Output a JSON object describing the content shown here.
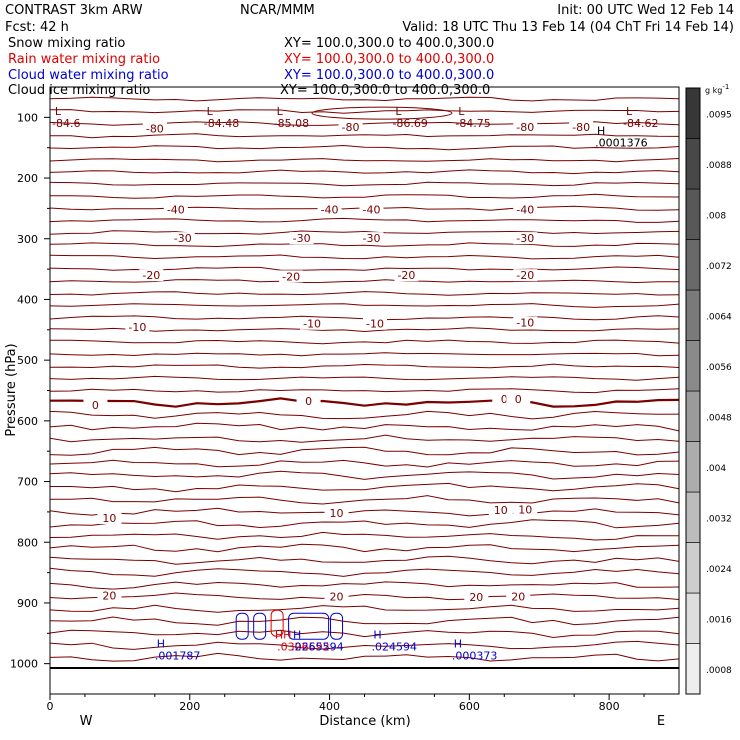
{
  "header": {
    "model": "CONTRAST  3km ARW",
    "org": "NCAR/MMM",
    "init": "Init: 00 UTC Wed 12 Feb 14",
    "fcst": "Fcst:    42 h",
    "valid": "Valid: 18 UTC Thu 13 Feb 14 (04 ChT Fri 14 Feb 14)"
  },
  "fields": [
    {
      "name": "Snow mixing ratio",
      "xy": "XY= 100.0,300.0 to 400.0,300.0",
      "color": "#000000"
    },
    {
      "name": "Rain water mixing ratio",
      "xy": "XY= 100.0,300.0 to 400.0,300.0",
      "color": "#e00000"
    },
    {
      "name": "Cloud water mixing ratio",
      "xy": "XY= 100.0,300.0 to 400.0,300.0",
      "color": "#0000d0"
    },
    {
      "name": "Cloud ice mixing ratio",
      "xy": "XY= 100.0,300.0 to 400.0,300.0",
      "color": "#000000"
    }
  ],
  "chart_data": {
    "type": "cross-section contour",
    "xlabel": "Distance (km)",
    "ylabel": "Pressure (hPa)",
    "xlim": [
      0,
      900
    ],
    "ylim": [
      1050,
      50
    ],
    "xticks": [
      "0",
      "200",
      "400",
      "600",
      "800"
    ],
    "yticks": [
      "100",
      "200",
      "300",
      "400",
      "500",
      "600",
      "700",
      "800",
      "900",
      "1000"
    ],
    "left_label": "W",
    "right_label": "E",
    "colorbar": {
      "unit": "g kg",
      "unit_exp": "-1",
      "levels": [
        ".0008",
        ".0016",
        ".0024",
        ".0032",
        ".004",
        ".0048",
        ".0056",
        ".0064",
        ".0072",
        ".008",
        ".0088",
        ".0095"
      ]
    },
    "temperature_contour_color": "#7a0000",
    "temperature_labels": [
      {
        "text": "-80",
        "x": 150,
        "p": 118
      },
      {
        "text": "-80",
        "x": 430,
        "p": 116
      },
      {
        "text": "-80",
        "x": 680,
        "p": 116
      },
      {
        "text": "-80",
        "x": 760,
        "p": 116
      },
      {
        "text": "-40",
        "x": 180,
        "p": 252
      },
      {
        "text": "-40",
        "x": 400,
        "p": 252
      },
      {
        "text": "-40",
        "x": 460,
        "p": 252
      },
      {
        "text": "-40",
        "x": 680,
        "p": 252
      },
      {
        "text": "-30",
        "x": 190,
        "p": 299
      },
      {
        "text": "-30",
        "x": 360,
        "p": 299
      },
      {
        "text": "-30",
        "x": 460,
        "p": 299
      },
      {
        "text": "-30",
        "x": 680,
        "p": 299
      },
      {
        "text": "-20",
        "x": 145,
        "p": 360
      },
      {
        "text": "-20",
        "x": 345,
        "p": 362
      },
      {
        "text": "-20",
        "x": 510,
        "p": 360
      },
      {
        "text": "-20",
        "x": 680,
        "p": 360
      },
      {
        "text": "-10",
        "x": 125,
        "p": 445
      },
      {
        "text": "-10",
        "x": 375,
        "p": 440
      },
      {
        "text": "-10",
        "x": 465,
        "p": 440
      },
      {
        "text": "-10",
        "x": 680,
        "p": 438
      },
      {
        "text": "0",
        "x": 65,
        "p": 574
      },
      {
        "text": "0",
        "x": 370,
        "p": 567
      },
      {
        "text": "0",
        "x": 650,
        "p": 564
      },
      {
        "text": "0",
        "x": 670,
        "p": 564
      },
      {
        "text": "10",
        "x": 85,
        "p": 760
      },
      {
        "text": "10",
        "x": 410,
        "p": 752
      },
      {
        "text": "10",
        "x": 645,
        "p": 747
      },
      {
        "text": "10",
        "x": 680,
        "p": 746
      },
      {
        "text": "20",
        "x": 85,
        "p": 888
      },
      {
        "text": "20",
        "x": 410,
        "p": 889
      },
      {
        "text": "20",
        "x": 610,
        "p": 890
      },
      {
        "text": "20",
        "x": 670,
        "p": 889
      }
    ],
    "extrema": [
      {
        "type": "L",
        "value": "-84.6",
        "x": 0,
        "p": 93,
        "color": "#7a0000"
      },
      {
        "type": "L",
        "value": "-84.48",
        "x": 220,
        "p": 93,
        "color": "#7a0000"
      },
      {
        "type": "L",
        "value": "-85.08",
        "x": 320,
        "p": 93,
        "color": "#7a0000"
      },
      {
        "type": "L",
        "value": "-86.69",
        "x": 490,
        "p": 93,
        "color": "#7a0000"
      },
      {
        "type": "L",
        "value": "-84.75",
        "x": 580,
        "p": 93,
        "color": "#7a0000"
      },
      {
        "type": "L",
        "value": "-84.62",
        "x": 820,
        "p": 93,
        "color": "#7a0000"
      },
      {
        "type": "H",
        "value": ".0001376",
        "x": 780,
        "p": 125,
        "color": "#000000"
      },
      {
        "type": "H",
        "value": ".001787",
        "x": 150,
        "p": 970,
        "color": "#0000d0"
      },
      {
        "type": "H",
        "value": ".024594",
        "x": 460,
        "p": 955,
        "color": "#0000d0"
      },
      {
        "type": "H",
        "value": ".000373",
        "x": 575,
        "p": 970,
        "color": "#0000d0"
      },
      {
        "type": "HH",
        "value": ".0326592",
        "x": 325,
        "p": 955,
        "color": "#e00000"
      },
      {
        "type": "H",
        "value": ".0265594",
        "x": 345,
        "p": 955,
        "color": "#0000d0"
      }
    ]
  }
}
